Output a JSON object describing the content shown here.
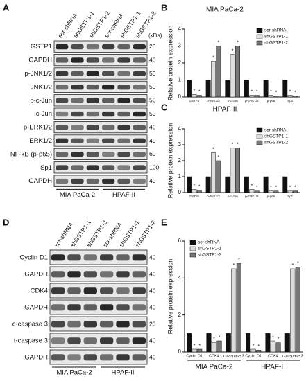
{
  "blot_a": {
    "panel": "A",
    "lanes": [
      "scr-shRNA",
      "shGSTP1-1",
      "shGSTP1-2",
      "scr-shRNA",
      "shGSTP1-1",
      "shGSTP1-2"
    ],
    "unit": "(kDa)",
    "rows": [
      {
        "name": "GSTP1",
        "kda": "20"
      },
      {
        "name": "GAPDH",
        "kda": "40"
      },
      {
        "name": "p-JNK1/2",
        "kda": "50"
      },
      {
        "name": "JNK1/2",
        "kda": "50"
      },
      {
        "name": "p-c-Jun",
        "kda": "50"
      },
      {
        "name": "c-Jun",
        "kda": "50"
      },
      {
        "name": "p-ERK1/2",
        "kda": "40"
      },
      {
        "name": "ERK1/2",
        "kda": "40"
      },
      {
        "name": "NF-κB (p-p65)",
        "kda": "60"
      },
      {
        "name": "Sp1",
        "kda": "100"
      },
      {
        "name": "GAPDH",
        "kda": "40"
      }
    ],
    "groups": [
      "MIA PaCa-2",
      "HPAF-II"
    ]
  },
  "blot_d": {
    "panel": "D",
    "lanes": [
      "scr-shRNA",
      "shGSTP1-1",
      "shGSTP1-2",
      "scr-shRNA",
      "shGSTP1-1",
      "shGSTP1-2"
    ],
    "rows": [
      {
        "name": "Cyclin D1",
        "kda": "40"
      },
      {
        "name": "GAPDH",
        "kda": "40"
      },
      {
        "name": "CDK4",
        "kda": "40"
      },
      {
        "name": "GAPDH",
        "kda": "40"
      },
      {
        "name": "c-caspase 3",
        "kda": "20"
      },
      {
        "name": "t-caspase 3",
        "kda": "40"
      },
      {
        "name": "GAPDH",
        "kda": "40"
      }
    ],
    "groups": [
      "MIA PaCa-2",
      "HPAF-II"
    ]
  },
  "chart_data": [
    {
      "type": "bar",
      "panel": "B",
      "title": "MIA PaCa-2",
      "ylabel": "Relative protein expression",
      "marker": "*",
      "categories": [
        "GSTP1",
        "p-JNK1/2",
        "p-c-Jun",
        "p-ERK1/2",
        "p-p65",
        "Sp1"
      ],
      "series": [
        {
          "name": "scr-shRNA",
          "color": "#111111",
          "values": [
            1,
            1,
            1,
            1,
            1,
            1
          ]
        },
        {
          "name": "shGSTP1-1",
          "color": "#dddddd",
          "values": [
            0.15,
            2.1,
            2.5,
            0.1,
            0.1,
            0.1
          ]
        },
        {
          "name": "shGSTP1-2",
          "color": "#777777",
          "values": [
            0.1,
            3,
            3,
            0.1,
            0.05,
            0.05
          ]
        }
      ],
      "ylim": [
        0,
        4
      ],
      "yticks": [
        0,
        1,
        2,
        3,
        4
      ],
      "legend": "upper right"
    },
    {
      "type": "bar",
      "panel": "C",
      "title": "HPAF-II",
      "ylabel": "Relative protein expression",
      "marker": "*",
      "categories": [
        "GSTP1",
        "p-JNK1/2",
        "p-c-Jun",
        "p-ERK1/2",
        "p-p65",
        "Sp1"
      ],
      "series": [
        {
          "name": "scr-shRNA",
          "color": "#111111",
          "values": [
            1,
            1,
            1,
            1,
            1,
            1
          ]
        },
        {
          "name": "shGSTP1-1",
          "color": "#dddddd",
          "values": [
            0.2,
            2.5,
            2.8,
            0.2,
            0.1,
            0.1
          ]
        },
        {
          "name": "shGSTP1-2",
          "color": "#777777",
          "values": [
            0.15,
            2,
            2.8,
            0.1,
            0.1,
            0.1
          ]
        }
      ],
      "ylim": [
        0,
        4
      ],
      "yticks": [
        0,
        1,
        2,
        3,
        4
      ],
      "legend": "upper right"
    },
    {
      "type": "bar",
      "panel": "E",
      "ylabel": "Relative protein expression",
      "marker": "*",
      "categories": [
        "Cyclin D1",
        "CDK4",
        "c-caspase 3",
        "Cyclin D1",
        "CDK4",
        "c-caspase 3"
      ],
      "groups": [
        "MIA PaCa-2",
        "HPAF-II"
      ],
      "series": [
        {
          "name": "scr-shRNA",
          "color": "#111111",
          "values": [
            1,
            1,
            1,
            1,
            1,
            1
          ]
        },
        {
          "name": "shGSTP1-1",
          "color": "#dddddd",
          "values": [
            0.15,
            0.5,
            4.5,
            0.15,
            0.6,
            4.5
          ]
        },
        {
          "name": "shGSTP1-2",
          "color": "#777777",
          "values": [
            0.15,
            0.6,
            4.8,
            0.1,
            0.5,
            4.6
          ]
        }
      ],
      "ylim": [
        0,
        6
      ],
      "yticks": [
        0,
        2,
        4,
        6
      ],
      "legend": "upper left"
    }
  ]
}
